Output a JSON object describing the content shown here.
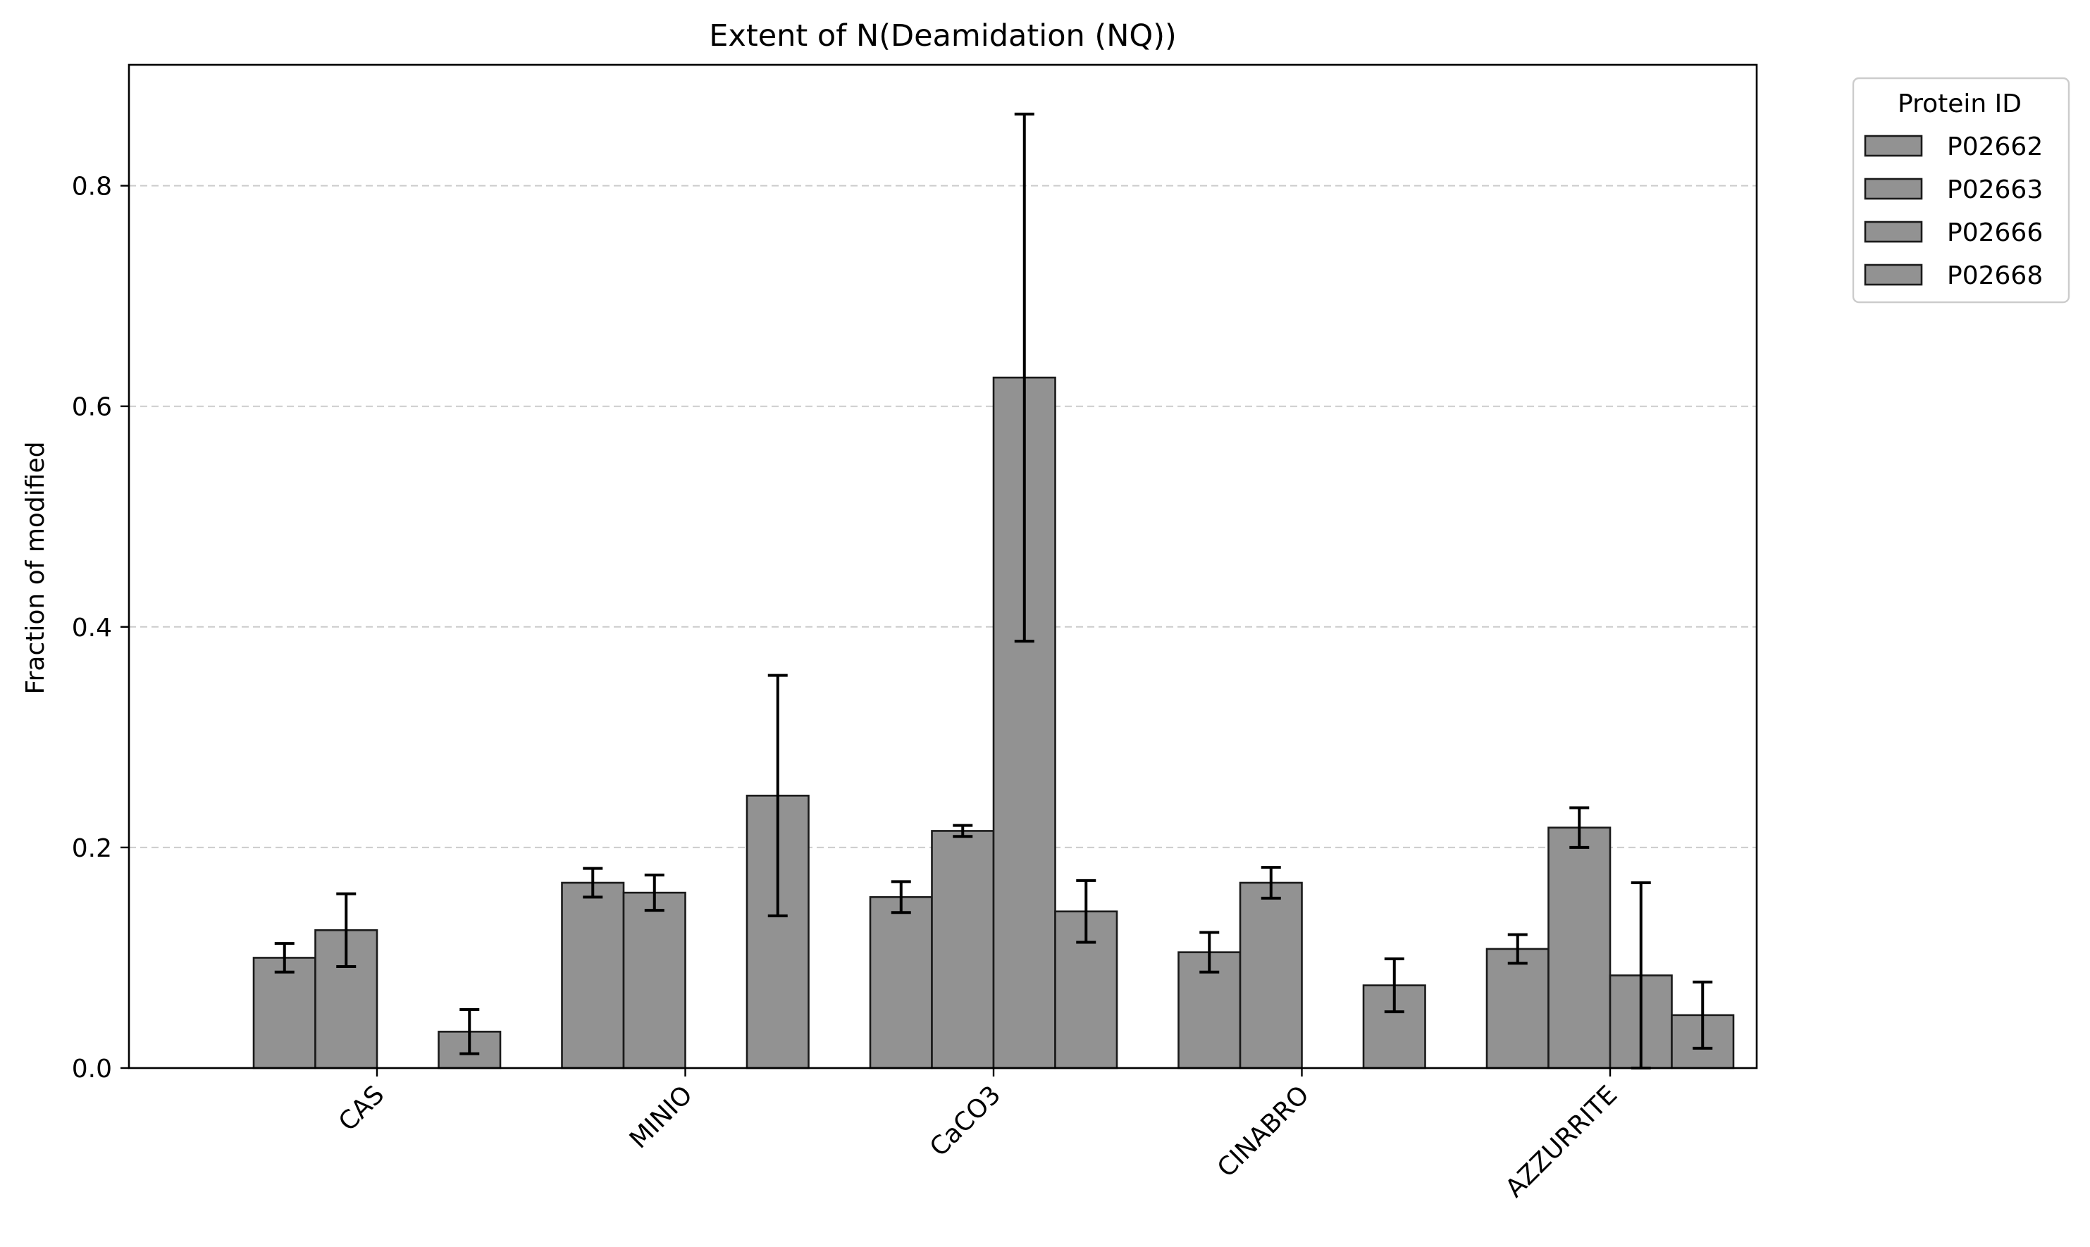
{
  "chart_data": {
    "type": "bar",
    "title": "Extent of N(Deamidation (NQ))",
    "xlabel": "",
    "ylabel": "Fraction of modified",
    "categories": [
      "CAS",
      "MINIO",
      "CaCO3",
      "CINABRO",
      "AZZURRITE"
    ],
    "ylim": [
      0,
      0.91
    ],
    "yticks": [
      0.0,
      0.2,
      0.4,
      0.6,
      0.8
    ],
    "ytick_labels": [
      "0.0",
      "0.2",
      "0.4",
      "0.6",
      "0.8"
    ],
    "grid": "y-dashed",
    "bar_color": "#929292",
    "edge_color": "#1a1a1a",
    "series": [
      {
        "name": "P02662",
        "values": [
          0.1,
          0.168,
          0.155,
          0.105,
          0.108
        ],
        "errors": [
          0.013,
          0.013,
          0.014,
          0.018,
          0.013
        ]
      },
      {
        "name": "P02663",
        "values": [
          0.125,
          0.159,
          0.215,
          0.168,
          0.218
        ],
        "errors": [
          0.033,
          0.016,
          0.005,
          0.014,
          0.018
        ]
      },
      {
        "name": "P02666",
        "values": [
          0.0,
          0.0,
          0.626,
          0.0,
          0.084
        ],
        "errors": [
          0.0,
          0.0,
          0.239,
          0.0,
          0.084
        ]
      },
      {
        "name": "P02668",
        "values": [
          0.033,
          0.247,
          0.142,
          0.075,
          0.048
        ],
        "errors": [
          0.02,
          0.109,
          0.028,
          0.024,
          0.03
        ]
      }
    ],
    "legend": {
      "title": "Protein ID",
      "location": "outside-top-right"
    }
  }
}
